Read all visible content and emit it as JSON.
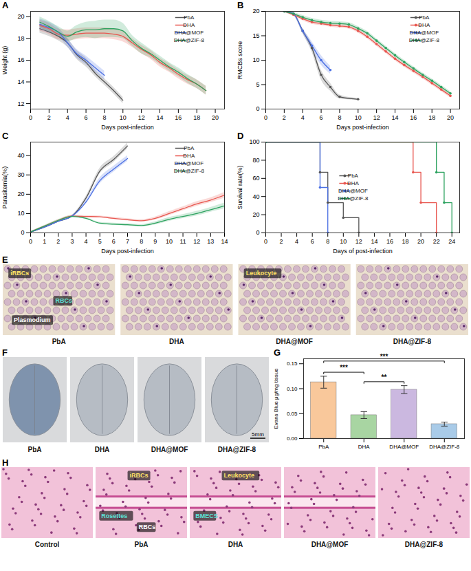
{
  "chart_data": [
    {
      "panel": "A",
      "type": "line",
      "x_label": "Days post-infection",
      "y_label": "Weight (g)",
      "xlim": [
        0,
        21
      ],
      "xticks": [
        0,
        2,
        4,
        6,
        8,
        10,
        12,
        14,
        16,
        18,
        20
      ],
      "ylim": [
        11.5,
        20.5
      ],
      "yticks": [
        12,
        14,
        16,
        18,
        20
      ],
      "legend": "upper right",
      "series": [
        {
          "name": "PbA",
          "color": "#555555",
          "x": [
            1,
            2,
            3,
            4,
            5,
            6,
            7,
            8,
            9,
            10
          ],
          "values": [
            18.9,
            18.6,
            18.2,
            17.6,
            16.5,
            15.8,
            14.8,
            14.0,
            13.2,
            12.3
          ],
          "errors": [
            0.4,
            0.4,
            0.4,
            0.4,
            0.4,
            0.4,
            0.3,
            0.3,
            0.3,
            0.3
          ]
        },
        {
          "name": "DHA",
          "color": "#e8564f",
          "x": [
            1,
            2,
            3,
            4,
            5,
            6,
            7,
            8,
            9,
            10,
            11,
            12,
            13,
            14,
            15,
            16,
            17,
            18,
            19
          ],
          "values": [
            19.2,
            18.9,
            18.4,
            18.3,
            18.4,
            18.5,
            18.5,
            18.5,
            18.4,
            18.2,
            17.6,
            17.0,
            16.5,
            15.8,
            15.3,
            14.7,
            14.2,
            13.8,
            13.2
          ],
          "errors": [
            0.5,
            0.5,
            0.5,
            0.5,
            0.5,
            0.5,
            0.5,
            0.5,
            0.5,
            0.5,
            0.4,
            0.4,
            0.4,
            0.4,
            0.4,
            0.4,
            0.4,
            0.4,
            0.4
          ]
        },
        {
          "name": "DHA@MOF",
          "color": "#4a6fe3",
          "x": [
            1,
            2,
            3,
            4,
            5,
            6,
            7,
            8
          ],
          "values": [
            19.3,
            19.0,
            18.6,
            17.6,
            16.6,
            16.0,
            15.3,
            14.6
          ],
          "errors": [
            0.5,
            0.5,
            0.4,
            0.4,
            0.4,
            0.4,
            0.4,
            0.4
          ]
        },
        {
          "name": "DHA@ZIF-8",
          "color": "#2ca25f",
          "x": [
            1,
            2,
            3,
            4,
            5,
            6,
            7,
            8,
            9,
            10,
            11,
            12,
            13,
            14,
            15,
            16,
            17,
            18,
            19
          ],
          "values": [
            19.5,
            19.1,
            18.6,
            18.2,
            18.6,
            18.8,
            18.8,
            18.9,
            18.9,
            18.7,
            17.8,
            17.1,
            16.6,
            16.0,
            15.4,
            14.9,
            14.3,
            13.8,
            13.2
          ],
          "errors": [
            0.5,
            0.5,
            0.5,
            0.5,
            0.6,
            0.7,
            0.8,
            0.8,
            0.8,
            0.7,
            0.5,
            0.5,
            0.4,
            0.4,
            0.4,
            0.4,
            0.4,
            0.4,
            0.4
          ]
        }
      ]
    },
    {
      "panel": "B",
      "type": "line",
      "x_label": "Days post-infection",
      "y_label": "RMCBs score",
      "xlim": [
        0,
        21
      ],
      "xticks": [
        0,
        2,
        4,
        6,
        8,
        10,
        12,
        14,
        16,
        18,
        20
      ],
      "ylim": [
        0,
        20
      ],
      "yticks": [
        0,
        5,
        10,
        15,
        20
      ],
      "legend": "upper right",
      "series": [
        {
          "name": "PbA",
          "color": "#555555",
          "marker": "circle",
          "x": [
            2,
            3,
            4,
            5,
            6,
            7,
            8,
            10
          ],
          "values": [
            20,
            19.5,
            16,
            12.5,
            7,
            4.5,
            2.5,
            2
          ],
          "errors": [
            0.2,
            0.3,
            0.5,
            0.8,
            1,
            0.8,
            0.4,
            0.2
          ]
        },
        {
          "name": "DHA",
          "color": "#e8564f",
          "marker": "circle",
          "x": [
            2,
            3,
            4,
            5,
            6,
            7,
            8,
            9,
            10,
            11,
            12,
            13,
            14,
            15,
            16,
            17,
            18,
            19,
            20
          ],
          "values": [
            20,
            19.3,
            18.5,
            17.8,
            17.5,
            17.2,
            17.0,
            16.8,
            16.0,
            14.8,
            13.3,
            11.8,
            10.3,
            9.0,
            7.8,
            6.6,
            5.3,
            4.0,
            2.7
          ],
          "errors": [
            0.2,
            0.3,
            0.4,
            0.4,
            0.4,
            0.4,
            0.4,
            0.4,
            0.4,
            0.4,
            0.4,
            0.4,
            0.4,
            0.4,
            0.4,
            0.4,
            0.4,
            0.4,
            0.4
          ]
        },
        {
          "name": "DHA@MOF",
          "color": "#4a6fe3",
          "marker": "circle",
          "x": [
            2,
            3,
            4,
            5,
            6,
            7
          ],
          "values": [
            20,
            19.5,
            16,
            13,
            10,
            8
          ],
          "errors": [
            0.2,
            0.3,
            0.5,
            0.8,
            1,
            0.8
          ]
        },
        {
          "name": "DHA@ZIF-8",
          "color": "#2ca25f",
          "marker": "circle",
          "x": [
            2,
            3,
            4,
            5,
            6,
            7,
            8,
            9,
            10,
            11,
            12,
            13,
            14,
            15,
            16,
            17,
            18,
            19,
            20
          ],
          "values": [
            20,
            19.5,
            18.8,
            18.2,
            17.8,
            17.6,
            17.5,
            17.3,
            16.5,
            15.5,
            14.0,
            12.5,
            11.0,
            9.6,
            8.3,
            7.0,
            5.8,
            4.5,
            3.2
          ],
          "errors": [
            0.2,
            0.3,
            0.4,
            0.4,
            0.4,
            0.4,
            0.4,
            0.4,
            0.4,
            0.4,
            0.4,
            0.4,
            0.4,
            0.4,
            0.4,
            0.4,
            0.4,
            0.4,
            0.4
          ]
        }
      ]
    },
    {
      "panel": "C",
      "type": "line",
      "x_label": "Days post-infection",
      "y_label": "Parasitemia(%)",
      "xlim": [
        0,
        14
      ],
      "xticks": [
        0,
        1,
        2,
        3,
        4,
        5,
        6,
        7,
        8,
        9,
        10,
        11,
        12,
        13,
        14
      ],
      "ylim": [
        0,
        47
      ],
      "yticks": [
        0,
        10,
        20,
        30,
        40
      ],
      "legend": "upper right",
      "series": [
        {
          "name": "PbA",
          "color": "#555555",
          "x": [
            0,
            1,
            2,
            3,
            4,
            5,
            6,
            7
          ],
          "values": [
            0.5,
            3,
            6,
            8.7,
            18,
            32,
            38,
            45
          ],
          "errors": [
            0.2,
            0.3,
            0.4,
            0.5,
            1,
            1.5,
            1.5,
            1.5
          ]
        },
        {
          "name": "DHA",
          "color": "#e8564f",
          "x": [
            0,
            1,
            2,
            3,
            4,
            5,
            6,
            7,
            8,
            9,
            10,
            11,
            12,
            13,
            14
          ],
          "values": [
            0.5,
            3.5,
            6.5,
            8.7,
            8.5,
            8.3,
            7.5,
            6.8,
            6.3,
            7.5,
            10,
            12.5,
            15,
            17,
            19.5
          ],
          "errors": [
            0.2,
            0.3,
            0.4,
            0.5,
            0.5,
            0.5,
            0.6,
            0.6,
            0.6,
            0.8,
            1,
            1,
            1.2,
            1.2,
            1.5
          ]
        },
        {
          "name": "DHA@MOF",
          "color": "#4a6fe3",
          "x": [
            0,
            1,
            2,
            3,
            4,
            5,
            6,
            7
          ],
          "values": [
            0.5,
            3,
            6,
            8.7,
            16,
            27,
            33,
            38.5
          ],
          "errors": [
            0.2,
            0.3,
            0.4,
            0.5,
            1,
            1.5,
            1.5,
            1.5
          ]
        },
        {
          "name": "DHA@ZIF-8",
          "color": "#2ca25f",
          "x": [
            0,
            1,
            2,
            3,
            4,
            5,
            6,
            7,
            8,
            9,
            10,
            11,
            12,
            13,
            14
          ],
          "values": [
            0.5,
            3.5,
            6.5,
            8.5,
            7.5,
            5,
            4.5,
            4.2,
            3.8,
            5,
            7,
            8.5,
            10,
            12,
            14
          ],
          "errors": [
            0.2,
            0.3,
            0.4,
            0.5,
            0.5,
            0.5,
            0.6,
            0.6,
            0.6,
            0.8,
            1,
            1,
            1.2,
            1.2,
            1.5
          ]
        }
      ]
    },
    {
      "panel": "D",
      "type": "line",
      "line_style": "step",
      "x_label": "Days of post-infection",
      "y_label": "Survival rate(%)",
      "xlim": [
        0,
        25
      ],
      "xticks": [
        0,
        2,
        4,
        6,
        8,
        10,
        12,
        14,
        16,
        18,
        20,
        22,
        24
      ],
      "ylim": [
        0,
        100
      ],
      "yticks": [
        0,
        20,
        40,
        60,
        80,
        100
      ],
      "legend": "center",
      "series": [
        {
          "name": "PbA",
          "color": "#555555",
          "marker": "circle",
          "x": [
            0,
            7,
            8,
            10,
            12
          ],
          "values": [
            100,
            66.7,
            33.3,
            16.7,
            0
          ]
        },
        {
          "name": "DHA",
          "color": "#e8564f",
          "marker": "circle",
          "x": [
            0,
            19,
            20,
            22
          ],
          "values": [
            100,
            66.7,
            33.3,
            0
          ]
        },
        {
          "name": "DHA@MOF",
          "color": "#4a6fe3",
          "marker": "circle",
          "x": [
            0,
            7,
            8
          ],
          "values": [
            100,
            50,
            0
          ]
        },
        {
          "name": "DHA@ZIF-8",
          "color": "#2ca25f",
          "marker": "circle",
          "x": [
            0,
            22,
            23,
            24
          ],
          "values": [
            100,
            66.7,
            33.3,
            0
          ]
        }
      ]
    },
    {
      "panel": "G",
      "type": "bar",
      "y_label": "Evans Blue μg/mg tissue",
      "categories": [
        "PbA",
        "DHA",
        "DHA@MOF",
        "DHA@ZIF-8"
      ],
      "values": [
        0.113,
        0.047,
        0.098,
        0.029
      ],
      "errors": [
        0.012,
        0.007,
        0.008,
        0.004
      ],
      "colors": [
        "#f9c89b",
        "#a8d5a2",
        "#cbb8e0",
        "#a9cbe8"
      ],
      "ylim": [
        0,
        0.16
      ],
      "yticks": [
        {
          "value": 0,
          "label": "0.00"
        },
        {
          "value": 0.05,
          "label": "0.05"
        },
        {
          "value": 0.1,
          "label": "0.10"
        },
        {
          "value": 0.15,
          "label": "0.15"
        }
      ],
      "annotations": [
        {
          "from": "PbA",
          "to": "DHA",
          "label": "***"
        },
        {
          "from": "DHA",
          "to": "DHA@MOF",
          "label": "**"
        },
        {
          "from": "PbA",
          "to": "DHA@ZIF-8",
          "label": "***"
        }
      ]
    }
  ],
  "images": [
    {
      "panel": "E",
      "items": [
        {
          "caption": "PbA",
          "labels": [
            "iRBCs",
            "RBCs",
            "Plasmodium"
          ]
        },
        {
          "caption": "DHA",
          "labels": []
        },
        {
          "caption": "DHA@MOF",
          "labels": [
            "Leukocyte"
          ]
        },
        {
          "caption": "DHA@ZIF-8",
          "labels": []
        }
      ]
    },
    {
      "panel": "F",
      "items": [
        {
          "caption": "PbA",
          "labels": []
        },
        {
          "caption": "DHA",
          "labels": []
        },
        {
          "caption": "DHA@MOF",
          "labels": []
        },
        {
          "caption": "DHA@ZIF-8",
          "labels": [],
          "scale_bar": "5mm"
        }
      ]
    },
    {
      "panel": "H",
      "items": [
        {
          "caption": "Control",
          "labels": []
        },
        {
          "caption": "PbA",
          "labels": [
            "iRBCs",
            "Rosettes",
            "RBCs"
          ]
        },
        {
          "caption": "DHA",
          "labels": [
            "Leukocyte",
            "BMECS"
          ]
        },
        {
          "caption": "DHA@MOF",
          "labels": []
        },
        {
          "caption": "DHA@ZIF-8",
          "labels": []
        }
      ]
    }
  ]
}
